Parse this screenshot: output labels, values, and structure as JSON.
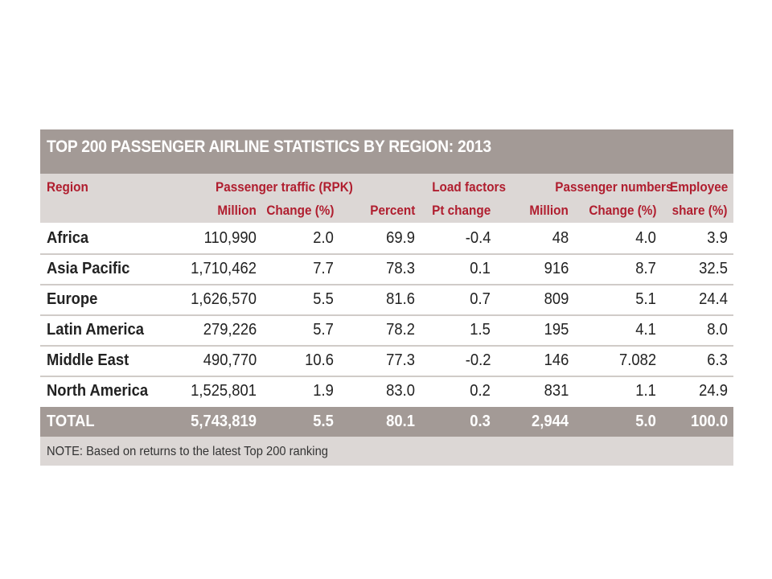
{
  "title": "TOP 200 PASSENGER AIRLINE STATISTICS BY REGION: 2013",
  "headers": {
    "region": "Region",
    "groups": {
      "traffic": "Passenger traffic (RPK)",
      "load": "Load factors",
      "passengers": "Passenger numbers",
      "employee": "Employee"
    },
    "sub": {
      "traffic_million": "Million",
      "traffic_change": "Change (%)",
      "load_percent": "Percent",
      "load_pt": "Pt change",
      "pass_million": "Million",
      "pass_change": "Change (%)",
      "employee_share": "share (%)"
    }
  },
  "rows": [
    {
      "region": "Africa",
      "rpk": "110,990",
      "rpk_change": "2.0",
      "load_pct": "69.9",
      "load_pt": "-0.4",
      "pax": "48",
      "pax_change": "4.0",
      "emp_share": "3.9"
    },
    {
      "region": "Asia Pacific",
      "rpk": "1,710,462",
      "rpk_change": "7.7",
      "load_pct": "78.3",
      "load_pt": "0.1",
      "pax": "916",
      "pax_change": "8.7",
      "emp_share": "32.5"
    },
    {
      "region": "Europe",
      "rpk": "1,626,570",
      "rpk_change": "5.5",
      "load_pct": "81.6",
      "load_pt": "0.7",
      "pax": "809",
      "pax_change": "5.1",
      "emp_share": "24.4"
    },
    {
      "region": "Latin America",
      "rpk": "279,226",
      "rpk_change": "5.7",
      "load_pct": "78.2",
      "load_pt": "1.5",
      "pax": "195",
      "pax_change": "4.1",
      "emp_share": "8.0"
    },
    {
      "region": "Middle East",
      "rpk": "490,770",
      "rpk_change": "10.6",
      "load_pct": "77.3",
      "load_pt": "-0.2",
      "pax": "146",
      "pax_change": "7.082",
      "emp_share": "6.3"
    },
    {
      "region": "North America",
      "rpk": "1,525,801",
      "rpk_change": "1.9",
      "load_pct": "83.0",
      "load_pt": "0.2",
      "pax": "831",
      "pax_change": "1.1",
      "emp_share": "24.9"
    }
  ],
  "total": {
    "region": "TOTAL",
    "rpk": "5,743,819",
    "rpk_change": "5.5",
    "load_pct": "80.1",
    "load_pt": "0.3",
    "pax": "2,944",
    "pax_change": "5.0",
    "emp_share": "100.0"
  },
  "note": "NOTE: Based on returns to the latest Top 200 ranking",
  "colors": {
    "title_bar": "#a39a96",
    "header_bg": "#dcd7d5",
    "header_text": "#b01e2f"
  }
}
